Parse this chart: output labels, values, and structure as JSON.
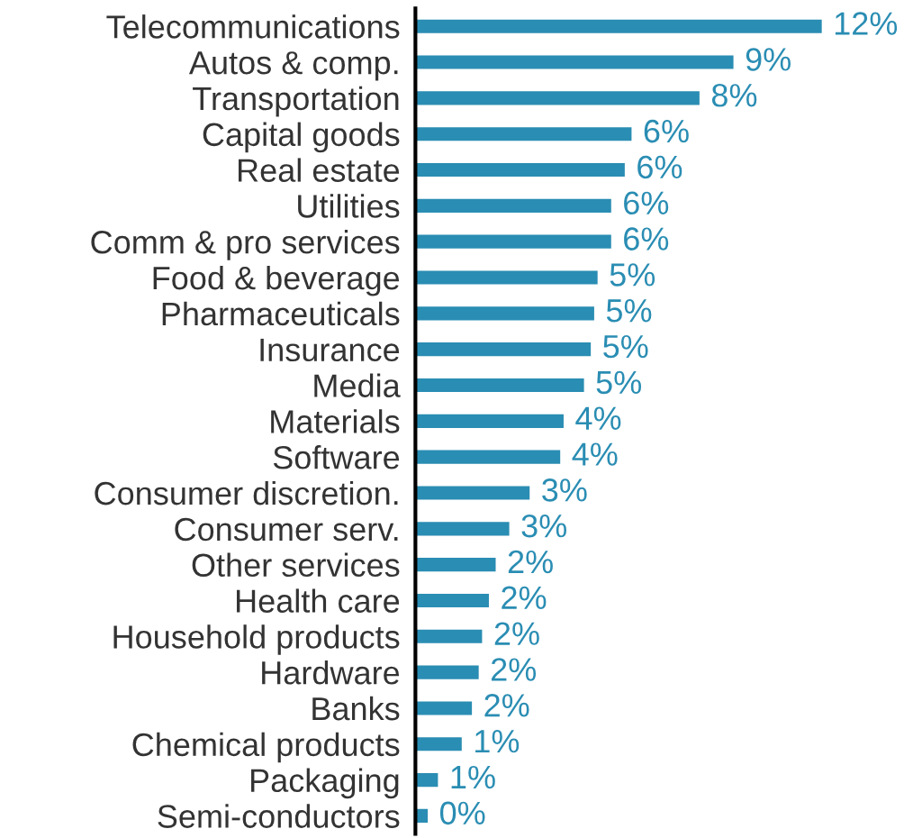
{
  "chart_data": {
    "type": "bar",
    "orientation": "horizontal",
    "categories": [
      "Telecommunications",
      "Autos & comp.",
      "Transportation",
      "Capital goods",
      "Real estate",
      "Utilities",
      "Comm & pro services",
      "Food & beverage",
      "Pharmaceuticals",
      "Insurance",
      "Media",
      "Materials",
      "Software",
      "Consumer discretion.",
      "Consumer serv.",
      "Other services",
      "Health care",
      "Household products",
      "Hardware",
      "Banks",
      "Chemical products",
      "Packaging",
      "Semi-conductors"
    ],
    "values": [
      12.0,
      9.4,
      8.4,
      6.4,
      6.2,
      5.8,
      5.8,
      5.4,
      5.3,
      5.2,
      5.0,
      4.4,
      4.3,
      3.4,
      2.8,
      2.4,
      2.2,
      2.0,
      1.9,
      1.7,
      1.4,
      0.7,
      0.4
    ],
    "value_labels": [
      "12%",
      "9%",
      "8%",
      "6%",
      "6%",
      "6%",
      "6%",
      "5%",
      "5%",
      "5%",
      "5%",
      "4%",
      "4%",
      "3%",
      "3%",
      "2%",
      "2%",
      "2%",
      "2%",
      "2%",
      "1%",
      "1%",
      "0%"
    ],
    "color": "#2a8db3",
    "grid": false,
    "legend": false
  }
}
